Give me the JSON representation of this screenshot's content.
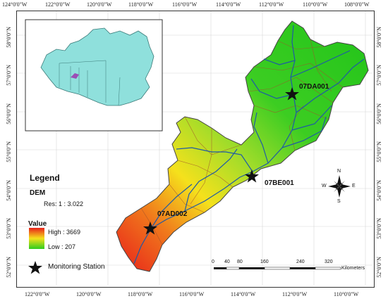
{
  "axis": {
    "top_ticks": [
      "124°0'0\"W",
      "122°0'0\"W",
      "120°0'0\"W",
      "118°0'0\"W",
      "116°0'0\"W",
      "114°0'0\"W",
      "112°0'0\"W",
      "110°0'0\"W",
      "108°0'0\"W"
    ],
    "bottom_ticks": [
      "122°0'0\"W",
      "120°0'0\"W",
      "118°0'0\"W",
      "116°0'0\"W",
      "114°0'0\"W",
      "112°0'0\"W",
      "110°0'0\"W"
    ],
    "left_ticks": [
      "58°0'0\"N",
      "57°0'0\"N",
      "56°0'0\"N",
      "55°0'0\"N",
      "54°0'0\"N",
      "53°0'0\"N",
      "52°0'0\"N"
    ],
    "right_ticks": [
      "58°0'0\"N",
      "57°0'0\"N",
      "56°0'0\"N",
      "55°0'0\"N",
      "54°0'0\"N",
      "53°0'0\"N",
      "52°0'0\"N"
    ]
  },
  "stations": [
    {
      "id": "07DA001"
    },
    {
      "id": "07BE001"
    },
    {
      "id": "07AD002"
    }
  ],
  "legend": {
    "title": "Legend",
    "dem_label": "DEM",
    "resolution": "Res: 1 : 3.022",
    "value_label": "Value",
    "high": "High : 3669",
    "low": "Low : 207",
    "station_label": "Monitoring Station"
  },
  "scalebar": {
    "ticks": [
      "0",
      "40",
      "80",
      "160",
      "240",
      "320"
    ],
    "unit": "Kilometers"
  },
  "compass": {
    "n": "N",
    "s": "S",
    "e": "E",
    "w": "W"
  },
  "colors": {
    "dem_high": "#e8201a",
    "dem_mid": "#f5e11c",
    "dem_low": "#2ecc1f",
    "canada_fill": "#8fe0dc",
    "basin_inset": "#9b4db5"
  }
}
